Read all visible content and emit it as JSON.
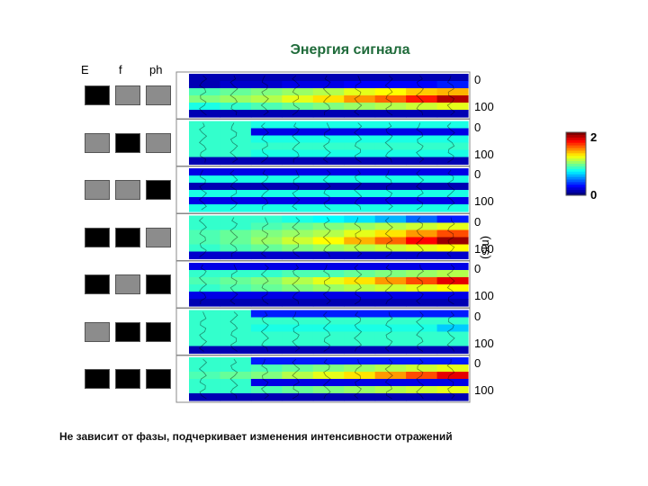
{
  "title": "Энергия сигнала",
  "column_headers": [
    "E",
    "f",
    "ph"
  ],
  "ylabel": "(ms)",
  "caption": "Не зависит от фазы, подчеркивает изменения интенсивности отражений",
  "colorbar": {
    "max_label": "2",
    "min_label": "0"
  },
  "colors": {
    "title": "#1f6b3a",
    "black_square": "#000000",
    "gray_square": "#8c8c8c"
  },
  "chart_data": {
    "type": "heatmap",
    "title": "Энергия сигнала",
    "ylabel": "(ms)",
    "ylim": [
      0,
      100
    ],
    "y_tick_labels": [
      "0",
      "100"
    ],
    "colorbar_range": [
      0,
      2
    ],
    "colorbar_tick_labels": [
      "2",
      "0"
    ],
    "panels": [
      {
        "attributes": [
          "black",
          "gray",
          "gray"
        ],
        "rows": [
          [
            0.1,
            0.1,
            0.1,
            0.1,
            0.1,
            0.1,
            0.1,
            0.1,
            0.1
          ],
          [
            0.1,
            0.15,
            0.15,
            0.2,
            0.2,
            0.25,
            0.25,
            0.25,
            0.3
          ],
          [
            0.9,
            0.95,
            1.0,
            1.05,
            1.1,
            1.2,
            1.25,
            1.35,
            1.4
          ],
          [
            1.0,
            1.05,
            1.1,
            1.2,
            1.3,
            1.45,
            1.55,
            1.7,
            1.9
          ],
          [
            0.8,
            0.85,
            0.9,
            0.95,
            1.0,
            1.05,
            1.1,
            1.15,
            1.2
          ],
          [
            0.1,
            0.1,
            0.1,
            0.1,
            0.1,
            0.1,
            0.1,
            0.1,
            0.1
          ]
        ]
      },
      {
        "attributes": [
          "gray",
          "black",
          "gray"
        ],
        "rows": [
          [
            0.85,
            0.85,
            0.8,
            0.8,
            0.8,
            0.8,
            0.8,
            0.8,
            0.8
          ],
          [
            0.85,
            0.85,
            0.2,
            0.2,
            0.2,
            0.2,
            0.2,
            0.2,
            0.2
          ],
          [
            0.85,
            0.85,
            0.8,
            0.8,
            0.8,
            0.8,
            0.8,
            0.8,
            0.8
          ],
          [
            0.85,
            0.85,
            0.85,
            0.85,
            0.85,
            0.85,
            0.85,
            0.85,
            0.85
          ],
          [
            0.85,
            0.85,
            0.8,
            0.8,
            0.8,
            0.8,
            0.8,
            0.8,
            0.8
          ],
          [
            0.1,
            0.1,
            0.1,
            0.1,
            0.1,
            0.1,
            0.1,
            0.1,
            0.1
          ]
        ]
      },
      {
        "attributes": [
          "gray",
          "gray",
          "black"
        ],
        "rows": [
          [
            0.2,
            0.2,
            0.2,
            0.2,
            0.2,
            0.2,
            0.2,
            0.2,
            0.2
          ],
          [
            0.8,
            0.8,
            0.8,
            0.8,
            0.8,
            0.8,
            0.8,
            0.8,
            0.8
          ],
          [
            0.1,
            0.1,
            0.1,
            0.1,
            0.1,
            0.1,
            0.1,
            0.1,
            0.1
          ],
          [
            0.8,
            0.8,
            0.8,
            0.8,
            0.8,
            0.8,
            0.8,
            0.8,
            0.8
          ],
          [
            0.2,
            0.2,
            0.2,
            0.2,
            0.2,
            0.2,
            0.2,
            0.2,
            0.2
          ],
          [
            0.8,
            0.8,
            0.8,
            0.8,
            0.8,
            0.8,
            0.8,
            0.8,
            0.8
          ]
        ]
      },
      {
        "attributes": [
          "black",
          "black",
          "gray"
        ],
        "rows": [
          [
            0.85,
            0.85,
            0.85,
            0.8,
            0.75,
            0.7,
            0.6,
            0.45,
            0.3
          ],
          [
            0.85,
            0.85,
            0.9,
            0.95,
            1.0,
            1.05,
            1.1,
            1.15,
            1.2
          ],
          [
            0.9,
            0.95,
            1.0,
            1.05,
            1.1,
            1.2,
            1.3,
            1.45,
            1.6
          ],
          [
            0.9,
            0.95,
            1.05,
            1.15,
            1.25,
            1.4,
            1.55,
            1.75,
            1.95
          ],
          [
            0.85,
            0.9,
            0.95,
            1.0,
            1.05,
            1.1,
            1.15,
            1.2,
            1.25
          ],
          [
            0.15,
            0.15,
            0.15,
            0.15,
            0.15,
            0.15,
            0.15,
            0.15,
            0.15
          ]
        ]
      },
      {
        "attributes": [
          "black",
          "gray",
          "black"
        ],
        "rows": [
          [
            0.2,
            0.2,
            0.2,
            0.2,
            0.2,
            0.2,
            0.2,
            0.2,
            0.2
          ],
          [
            0.85,
            0.85,
            0.85,
            0.9,
            0.9,
            0.95,
            1.0,
            1.05,
            1.1
          ],
          [
            0.9,
            0.95,
            1.0,
            1.1,
            1.2,
            1.3,
            1.45,
            1.6,
            1.8
          ],
          [
            0.85,
            0.9,
            0.95,
            1.0,
            1.05,
            1.1,
            1.15,
            1.2,
            1.25
          ],
          [
            0.2,
            0.2,
            0.2,
            0.2,
            0.2,
            0.2,
            0.2,
            0.2,
            0.2
          ],
          [
            0.1,
            0.1,
            0.1,
            0.1,
            0.1,
            0.1,
            0.1,
            0.1,
            0.1
          ]
        ]
      },
      {
        "attributes": [
          "gray",
          "black",
          "black"
        ],
        "rows": [
          [
            0.85,
            0.85,
            0.3,
            0.3,
            0.3,
            0.3,
            0.3,
            0.3,
            0.3
          ],
          [
            0.85,
            0.85,
            0.85,
            0.85,
            0.85,
            0.85,
            0.85,
            0.85,
            0.85
          ],
          [
            0.85,
            0.85,
            0.8,
            0.8,
            0.8,
            0.8,
            0.8,
            0.8,
            0.65
          ],
          [
            0.85,
            0.85,
            0.85,
            0.85,
            0.85,
            0.85,
            0.85,
            0.85,
            0.85
          ],
          [
            0.85,
            0.85,
            0.85,
            0.85,
            0.85,
            0.85,
            0.85,
            0.85,
            0.85
          ],
          [
            0.1,
            0.1,
            0.1,
            0.1,
            0.1,
            0.1,
            0.1,
            0.1,
            0.1
          ]
        ]
      },
      {
        "attributes": [
          "black",
          "black",
          "black"
        ],
        "rows": [
          [
            0.85,
            0.85,
            0.3,
            0.3,
            0.3,
            0.3,
            0.3,
            0.3,
            0.3
          ],
          [
            0.85,
            0.85,
            0.9,
            0.95,
            1.0,
            1.05,
            1.1,
            1.15,
            1.2
          ],
          [
            0.9,
            0.95,
            1.0,
            1.1,
            1.2,
            1.3,
            1.45,
            1.6,
            1.8
          ],
          [
            0.85,
            0.85,
            0.2,
            0.2,
            0.2,
            0.2,
            0.2,
            0.2,
            0.2
          ],
          [
            0.85,
            0.85,
            0.9,
            0.95,
            1.0,
            1.05,
            1.1,
            1.15,
            1.2
          ],
          [
            0.1,
            0.1,
            0.1,
            0.1,
            0.1,
            0.1,
            0.1,
            0.1,
            0.1
          ]
        ]
      }
    ]
  }
}
